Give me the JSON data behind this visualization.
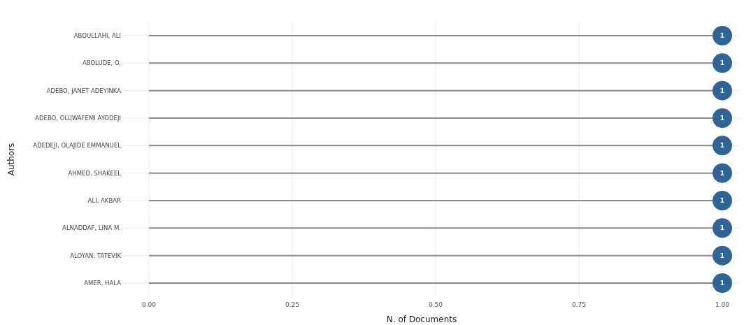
{
  "chart_data": {
    "type": "lollipop",
    "orientation": "horizontal",
    "xlabel": "N. of Documents",
    "ylabel": "Authors",
    "categories": [
      "ABDULLAHI, ALI",
      "ABOLUDE, O.",
      "ADEBO, JANET ADEYINKA",
      "ADEBO, OLUWAFEMI AYODEJI",
      "ADEDEJI, OLAJIDE EMMANUEL",
      "AHMED, SHAKEEL",
      "ALI, AKBAR",
      "ALNADDAF, LINA M.",
      "ALOYAN, TATEVIK",
      "AMER, HALA"
    ],
    "values": [
      1,
      1,
      1,
      1,
      1,
      1,
      1,
      1,
      1,
      1
    ],
    "color": "#2e6496",
    "xlim": [
      0,
      1
    ],
    "xticks": [
      {
        "value": 0,
        "label": "0.00"
      },
      {
        "value": 0.25,
        "label": "0.25"
      },
      {
        "value": 0.5,
        "label": "0.50"
      },
      {
        "value": 0.75,
        "label": "0.75"
      },
      {
        "value": 1,
        "label": "1.00"
      }
    ],
    "grid": true,
    "data_labels": true
  }
}
